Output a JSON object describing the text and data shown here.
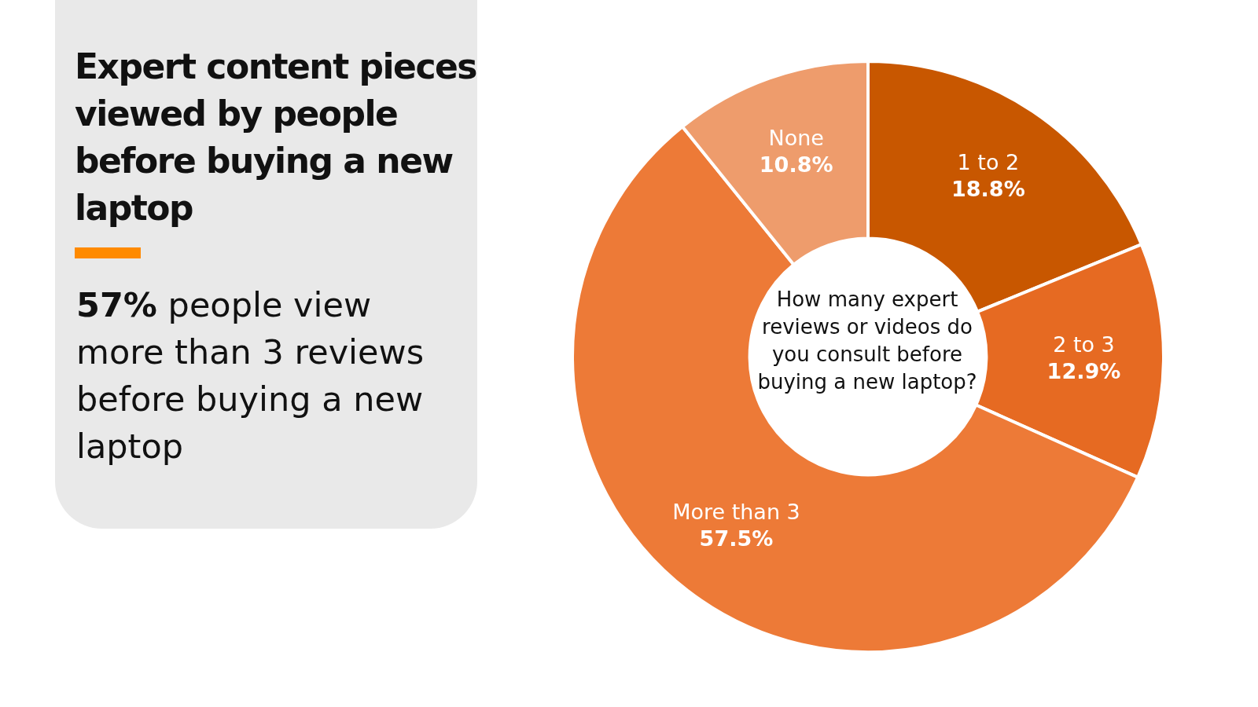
{
  "chart_data": {
    "type": "donut",
    "title": "Expert content pieces viewed by people before buying a new laptop",
    "subtitle": "57% people view more than 3 reviews before buying a new laptop",
    "categories": [
      "1 to 2",
      "2 to 3",
      "More than 3",
      "None"
    ],
    "values": [
      18.8,
      12.9,
      57.5,
      10.8
    ],
    "value_labels": [
      "18.8%",
      "12.9%",
      "57.5%",
      "10.8%"
    ],
    "colors": [
      "#c85700",
      "#e66a22",
      "#ed7a37",
      "#ee9c6c"
    ],
    "annotations": [
      "How many expert reviews or videos do you consult before buying a new laptop?"
    ],
    "legend": false
  }
}
